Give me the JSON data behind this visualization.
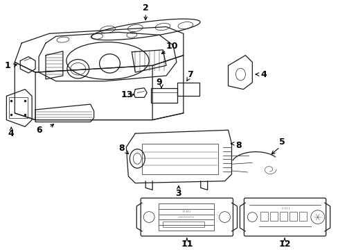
{
  "bg_color": "#ffffff",
  "line_color": "#1a1a1a",
  "lw_main": 0.9,
  "lw_thin": 0.5,
  "label_fontsize": 9,
  "figsize": [
    4.89,
    3.6
  ],
  "dpi": 100
}
